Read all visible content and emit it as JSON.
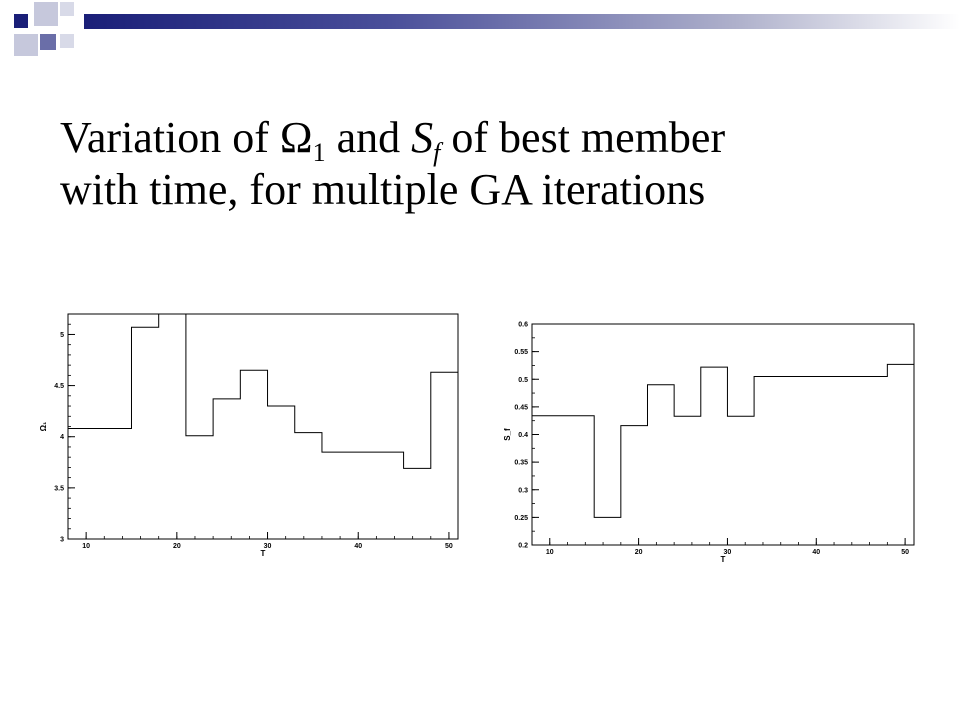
{
  "title": {
    "line1_a": "Variation of Ω",
    "line1_sub1": "1",
    "line1_b": " and ",
    "line1_s": "S",
    "line1_sub2": "f",
    "line1_c": " of best member",
    "line2": "with time, for multiple GA iterations"
  },
  "colors": {
    "accent_dark": "#1a1f78",
    "accent_light": "#b0b2cc"
  },
  "chart_data": [
    {
      "type": "line",
      "step": true,
      "xlabel": "T",
      "ylabel": "Ω₁",
      "xlim": [
        8,
        51
      ],
      "ylim": [
        3,
        5.2
      ],
      "xticks": [
        10,
        20,
        30,
        40,
        50
      ],
      "xtick_labels": [
        "10",
        "20",
        "30",
        "40",
        "50"
      ],
      "yticks": [
        3,
        3.5,
        4,
        4.5,
        5
      ],
      "ytick_labels": [
        "3",
        "3.5",
        "4",
        "4.5",
        "5"
      ],
      "grid": false,
      "series": [
        {
          "x": [
            8,
            15,
            18,
            21,
            24,
            27,
            30,
            33,
            36,
            42,
            45,
            48,
            51
          ],
          "y": [
            4.08,
            5.07,
            5.2,
            4.01,
            4.37,
            4.65,
            4.3,
            4.04,
            3.85,
            3.85,
            3.69,
            4.63,
            3.97
          ]
        }
      ]
    },
    {
      "type": "line",
      "step": true,
      "xlabel": "T",
      "ylabel": "S_f",
      "xlim": [
        8,
        51
      ],
      "ylim": [
        0.2,
        0.6
      ],
      "xticks": [
        10,
        20,
        30,
        40,
        50
      ],
      "xtick_labels": [
        "10",
        "20",
        "30",
        "40",
        "50"
      ],
      "yticks": [
        0.2,
        0.25,
        0.3,
        0.35,
        0.4,
        0.45,
        0.5,
        0.55,
        0.6
      ],
      "ytick_labels": [
        "0.2",
        "0.25",
        "0.3",
        "0.35",
        "0.4",
        "0.45",
        "0.5",
        "0.55",
        "0.6"
      ],
      "grid": false,
      "series": [
        {
          "x": [
            8,
            15,
            18,
            21,
            24,
            27,
            30,
            33,
            48,
            51
          ],
          "y": [
            0.434,
            0.25,
            0.416,
            0.49,
            0.433,
            0.522,
            0.433,
            0.505,
            0.527,
            0.527
          ]
        }
      ]
    }
  ]
}
